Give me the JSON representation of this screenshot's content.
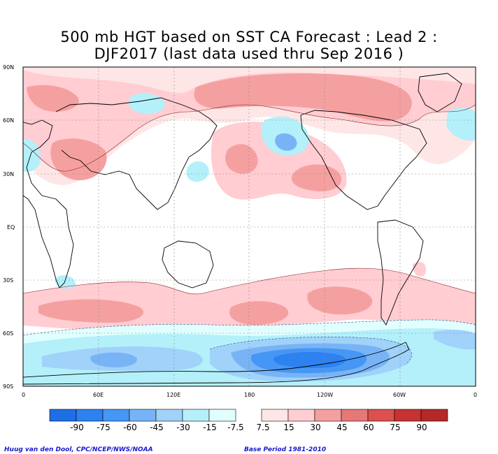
{
  "title": {
    "line1": "500 mb HGT based on SST CA Forecast : Lead 2 :",
    "line2": "DJF2017 (last data used thru Sep 2016 )"
  },
  "map": {
    "projection": "cylindrical equidistant",
    "lat_labels": [
      "90N",
      "60N",
      "30N",
      "EQ",
      "30S",
      "60S",
      "90S"
    ],
    "lon_labels": [
      "0",
      "60E",
      "120E",
      "180",
      "120W",
      "60W",
      "0"
    ],
    "grid": true
  },
  "colorbar": {
    "labels": [
      "-90",
      "-75",
      "-60",
      "-45",
      "-30",
      "-15",
      "-7.5",
      "7.5",
      "15",
      "30",
      "45",
      "60",
      "75",
      "90"
    ],
    "colors_negative": [
      "#1e6ee6",
      "#2d82f0",
      "#4696f5",
      "#78b4f5",
      "#a0d2fa",
      "#b4f0fa",
      "#e1ffff"
    ],
    "colors_positive": [
      "#ffe6e6",
      "#ffcdd2",
      "#f5a0a0",
      "#e67878",
      "#dc5050",
      "#c83232",
      "#b42828"
    ]
  },
  "credits": {
    "left": "Huug van den Dool, CPC/NCEP/NWS/NOAA",
    "right": "Base Period 1981-2010"
  }
}
